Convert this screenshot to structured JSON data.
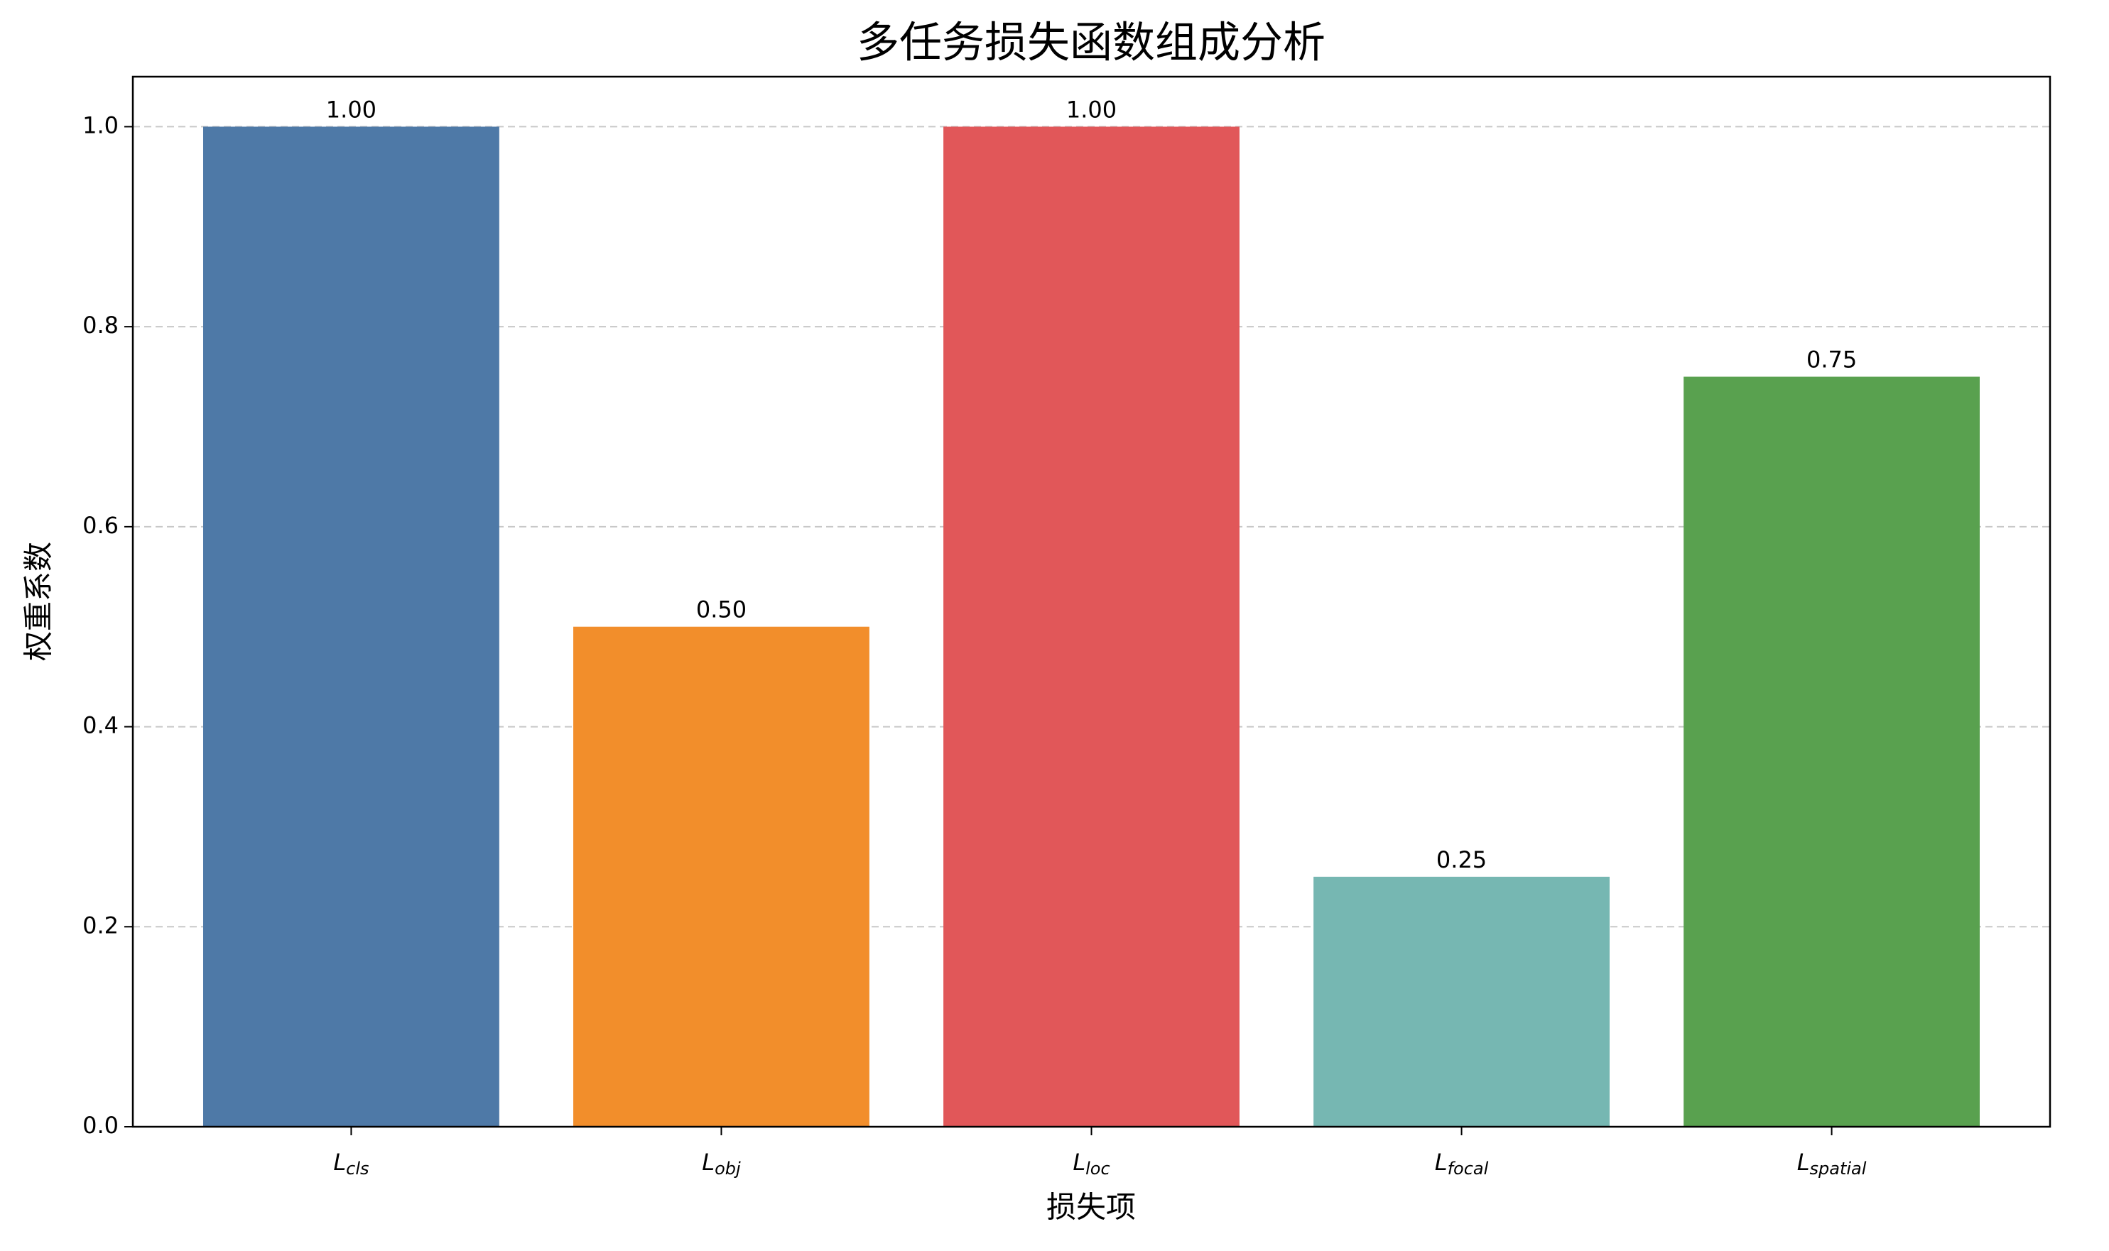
{
  "chart_data": {
    "type": "bar",
    "title": "多任务损失函数组成分析",
    "x_label": "损失项",
    "y_label": "权重系数",
    "categories": [
      "L_cls",
      "L_obj",
      "L_loc",
      "L_focal",
      "L_spatial"
    ],
    "values": [
      1.0,
      0.5,
      1.0,
      0.25,
      0.75
    ],
    "value_labels": [
      "1.00",
      "0.50",
      "1.00",
      "0.25",
      "0.75"
    ],
    "colors": [
      "#4e79a7",
      "#f28e2b",
      "#e15759",
      "#76b7b2",
      "#59a14f"
    ],
    "ylim": [
      0,
      1.05
    ],
    "yticks": [
      {
        "value": 0,
        "label": "0.0"
      },
      {
        "value": 0.2,
        "label": "0.2"
      },
      {
        "value": 0.4,
        "label": "0.4"
      },
      {
        "value": 0.6,
        "label": "0.6"
      },
      {
        "value": 0.8,
        "label": "0.8"
      },
      {
        "value": 1.0,
        "label": "1.0"
      }
    ],
    "grid": true
  }
}
